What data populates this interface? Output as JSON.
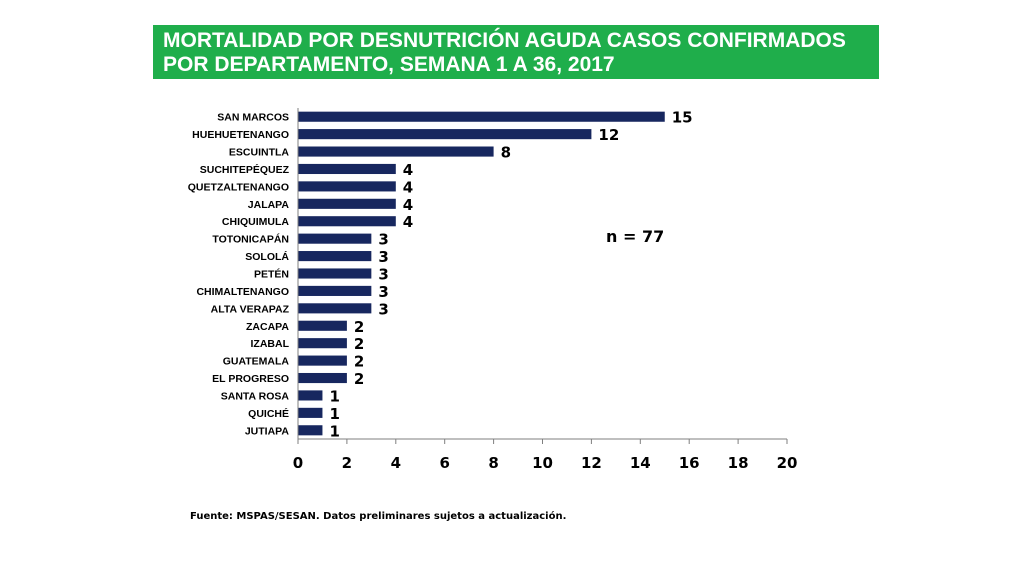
{
  "header": {
    "title_line1": "MORTALIDAD POR DESNUTRICIÓN AGUDA CASOS CONFIRMADOS",
    "title_line2": "POR DEPARTAMENTO, SEMANA 1 A 36, 2017",
    "bg_color": "#1fae4b"
  },
  "chart_data": {
    "type": "bar",
    "orientation": "horizontal",
    "categories": [
      "SAN MARCOS",
      "HUEHUETENANGO",
      "ESCUINTLA",
      "SUCHITEPÉQUEZ",
      "QUETZALTENANGO",
      "JALAPA",
      "CHIQUIMULA",
      "TOTONICAPÁN",
      "SOLOLÁ",
      "PETÉN",
      "CHIMALTENANGO",
      "ALTA VERAPAZ",
      "ZACAPA",
      "IZABAL",
      "GUATEMALA",
      "EL PROGRESO",
      "SANTA ROSA",
      "QUICHÉ",
      "JUTIAPA"
    ],
    "values": [
      15,
      12,
      8,
      4,
      4,
      4,
      4,
      3,
      3,
      3,
      3,
      3,
      2,
      2,
      2,
      2,
      1,
      1,
      1
    ],
    "xlim": [
      0,
      20
    ],
    "xticks": [
      0,
      2,
      4,
      6,
      8,
      10,
      12,
      14,
      16,
      18,
      20
    ],
    "grid": false,
    "bar_color": "#17275f",
    "annotation": "n = 77"
  },
  "footer": {
    "source": "Fuente:  MSPAS/SESAN. Datos preliminares sujetos a actualización."
  }
}
